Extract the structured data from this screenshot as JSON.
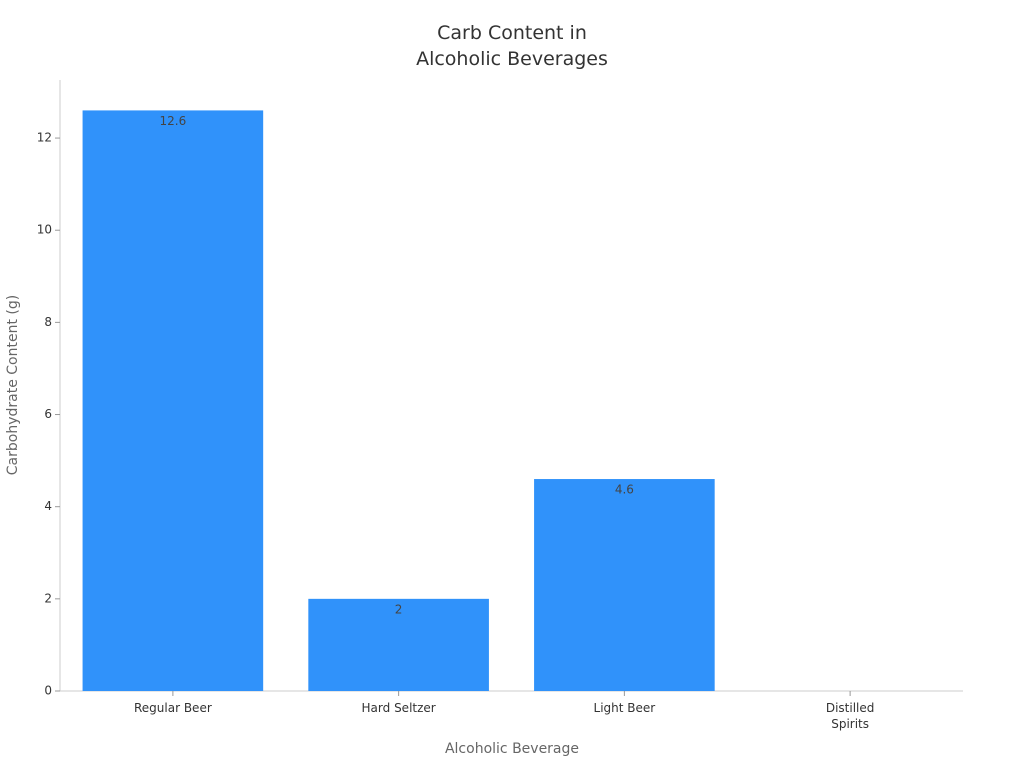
{
  "chart_data": {
    "type": "bar",
    "title": "Carb Content in Alcoholic Beverages",
    "x_label": "Alcoholic Beverage",
    "y_label": "Carbohydrate Content (g)",
    "categories": [
      "Regular Beer",
      "Hard Seltzer",
      "Light Beer",
      "Distilled Spirits"
    ],
    "values": [
      12.6,
      2,
      4.6,
      0
    ],
    "value_labels": [
      "12.6",
      "2",
      "4.6",
      null
    ],
    "color": "#3092fa",
    "ylim": [
      0,
      13.26
    ],
    "yticks": [
      0,
      2,
      4,
      6,
      8,
      10,
      12
    ],
    "grid": false
  }
}
